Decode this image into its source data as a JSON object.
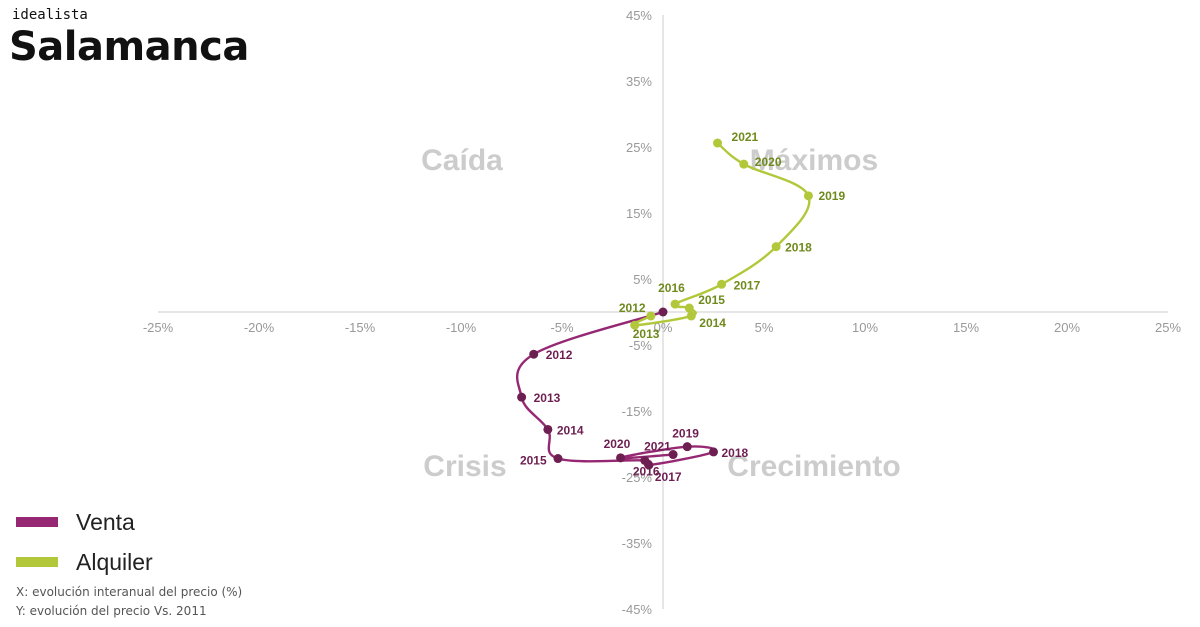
{
  "brand": "idealista",
  "title": "Salamanca",
  "quadrants": {
    "top_left": "Caída",
    "top_right": "Máximos",
    "bottom_left": "Crisis",
    "bottom_right": "Crecimiento"
  },
  "notes": {
    "x": "X: evolución interanual del precio (%)",
    "y": "Y: evolución del precio Vs. 2011"
  },
  "colors": {
    "venta": "#962873",
    "venta_point": "#6e1f52",
    "alquiler": "#b2c83a",
    "alquiler_label": "#6f8a1c",
    "axis": "#dddddd",
    "tick": "#999999",
    "quadrant": "#cccccc"
  },
  "chart_data": {
    "type": "line",
    "xlim": [
      -25,
      25
    ],
    "ylim": [
      -45,
      45
    ],
    "x_ticks": [
      "-25%",
      "-20%",
      "-15%",
      "-10%",
      "-5%",
      "0%",
      "5%",
      "10%",
      "15%",
      "20%",
      "25%"
    ],
    "y_ticks": [
      "45%",
      "35%",
      "25%",
      "15%",
      "5%",
      "-5%",
      "-15%",
      "-25%",
      "-35%",
      "-45%"
    ],
    "legend_position": "bottom-left",
    "series": [
      {
        "name": "Venta",
        "points": [
          {
            "label": "",
            "x": 0,
            "y": 0
          },
          {
            "label": "2012",
            "x": -6.4,
            "y": -6.4
          },
          {
            "label": "2013",
            "x": -7.0,
            "y": -12.9
          },
          {
            "label": "2014",
            "x": -5.7,
            "y": -17.8
          },
          {
            "label": "2015",
            "x": -5.2,
            "y": -22.2
          },
          {
            "label": "2016",
            "x": -0.9,
            "y": -22.5
          },
          {
            "label": "2017",
            "x": -0.7,
            "y": -23.2
          },
          {
            "label": "2018",
            "x": 2.5,
            "y": -21.2
          },
          {
            "label": "2019",
            "x": 1.2,
            "y": -20.4
          },
          {
            "label": "2020",
            "x": -2.1,
            "y": -22.1
          },
          {
            "label": "2021",
            "x": 0.5,
            "y": -21.6
          }
        ]
      },
      {
        "name": "Alquiler",
        "points": [
          {
            "label": "2012",
            "x": -0.6,
            "y": -0.6
          },
          {
            "label": "2013",
            "x": -1.4,
            "y": -2.0
          },
          {
            "label": "2014",
            "x": 1.4,
            "y": -0.6
          },
          {
            "label": "2015",
            "x": 1.3,
            "y": 0.6
          },
          {
            "label": "2016",
            "x": 0.6,
            "y": 1.2
          },
          {
            "label": "2017",
            "x": 2.9,
            "y": 4.2
          },
          {
            "label": "2018",
            "x": 5.6,
            "y": 9.9
          },
          {
            "label": "2019",
            "x": 7.2,
            "y": 17.6
          },
          {
            "label": "2020",
            "x": 4.0,
            "y": 22.4
          },
          {
            "label": "2021",
            "x": 2.7,
            "y": 25.6
          }
        ]
      }
    ]
  },
  "legend": [
    {
      "name": "Venta",
      "color": "#962873"
    },
    {
      "name": "Alquiler",
      "color": "#b2c83a"
    }
  ]
}
